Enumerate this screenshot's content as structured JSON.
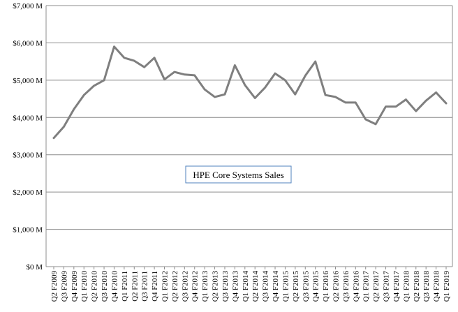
{
  "chart_data": {
    "type": "line",
    "title": "HPE Core Systems Sales",
    "xlabel": "",
    "ylabel": "",
    "ylim": [
      0,
      7000
    ],
    "y_ticks": [
      {
        "value": 0,
        "label": "$0 M"
      },
      {
        "value": 1000,
        "label": "$1,000 M"
      },
      {
        "value": 2000,
        "label": "$2,000 M"
      },
      {
        "value": 3000,
        "label": "$3,000 M"
      },
      {
        "value": 4000,
        "label": "$4,000 M"
      },
      {
        "value": 5000,
        "label": "$5,000 M"
      },
      {
        "value": 6000,
        "label": "$6,000 M"
      },
      {
        "value": 7000,
        "label": "$7,000 M"
      }
    ],
    "grid": "horizontal",
    "legend": "none",
    "series_color": "#7f7f7f",
    "categories": [
      "Q2 F2009",
      "Q3 F2009",
      "Q4 F2009",
      "Q1 F2010",
      "Q2 F2010",
      "Q3 F2010",
      "Q4 F2010",
      "Q1 F2011",
      "Q2 F2011",
      "Q3 F2011",
      "Q4 F2011",
      "Q1 F2012",
      "Q2 F2012",
      "Q3 F2012",
      "Q4 F2012",
      "Q1 F2013",
      "Q2 F2013",
      "Q3 F2013",
      "Q4 F2013",
      "Q1 F2014",
      "Q2 F2014",
      "Q3 F2014",
      "Q4 F2014",
      "Q1 F2015",
      "Q2 F2015",
      "Q3 F2015",
      "Q4 F2015",
      "Q1 F2016",
      "Q2 F2016",
      "Q3 F2016",
      "Q4 F2016",
      "Q1 F2017",
      "Q2 F2017",
      "Q3 F2017",
      "Q4 F2017",
      "Q1 F2018",
      "Q2 F2018",
      "Q3 F2018",
      "Q4 F2018",
      "Q1 F2019"
    ],
    "series": [
      {
        "values": [
          3450,
          3750,
          4220,
          4600,
          4850,
          5000,
          5900,
          5600,
          5520,
          5350,
          5600,
          5020,
          5220,
          5150,
          5130,
          4750,
          4550,
          4620,
          5400,
          4870,
          4520,
          4800,
          5180,
          5000,
          4620,
          5120,
          5500,
          4600,
          4550,
          4400,
          4400,
          3950,
          3820,
          4290,
          4290,
          4480,
          4170,
          4450,
          4670,
          4380
        ]
      }
    ]
  }
}
